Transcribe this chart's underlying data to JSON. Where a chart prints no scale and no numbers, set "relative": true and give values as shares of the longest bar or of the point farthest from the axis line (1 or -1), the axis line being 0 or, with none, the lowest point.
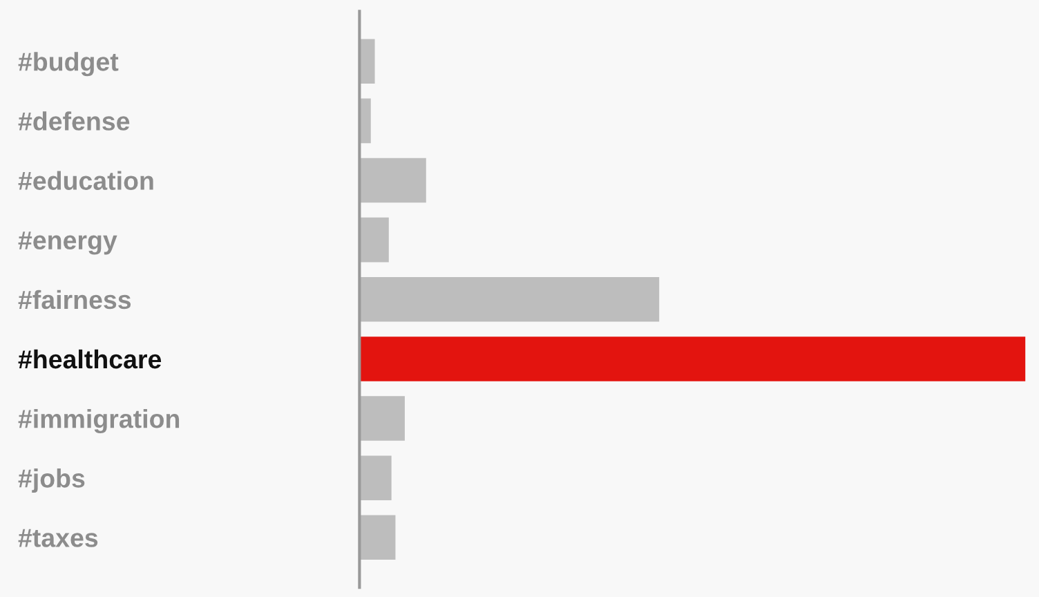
{
  "chart_data": {
    "type": "bar",
    "orientation": "horizontal",
    "relative": true,
    "categories": [
      "#budget",
      "#defense",
      "#education",
      "#energy",
      "#fairness",
      "#healthcare",
      "#immigration",
      "#jobs",
      "#taxes"
    ],
    "values": [
      0.023,
      0.017,
      0.1,
      0.044,
      0.45,
      1,
      0.068,
      0.048,
      0.054
    ],
    "colors": [
      "#bdbdbd",
      "#bdbdbd",
      "#bdbdbd",
      "#bdbdbd",
      "#bdbdbd",
      "#e3140f",
      "#bdbdbd",
      "#bdbdbd",
      "#bdbdbd"
    ]
  }
}
